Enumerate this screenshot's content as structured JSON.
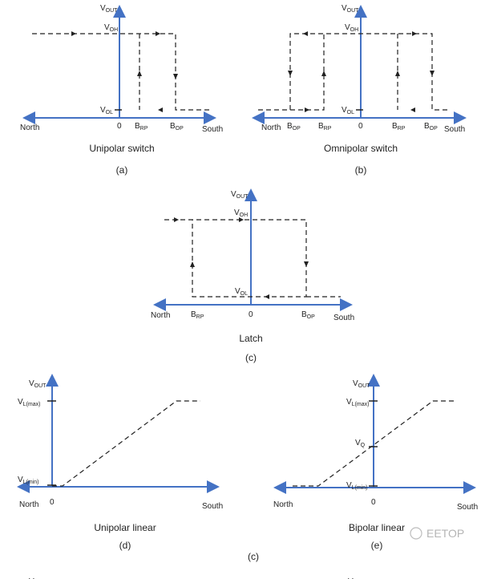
{
  "labels": {
    "vout": "V",
    "vout_sub": "OUT",
    "voh": "V",
    "voh_sub": "OH",
    "vol": "V",
    "vol_sub": "OL",
    "brp": "B",
    "brp_sub": "RP",
    "bop": "B",
    "bop_sub": "OP",
    "north": "North",
    "south": "South",
    "zero": "0",
    "vlmax": "V",
    "vlmax_sub": "L(max)",
    "vlmin": "V",
    "vlmin_sub": "L(min)",
    "vq": "V",
    "vq_sub": "Q"
  },
  "panels": {
    "a": {
      "title": "Unipolar switch",
      "tag": "(a)"
    },
    "b": {
      "title": "Omnipolar switch",
      "tag": "(b)"
    },
    "c": {
      "title": "Latch",
      "tag": "(c)"
    },
    "d": {
      "title": "Unipolar linear",
      "tag": "(d)"
    },
    "e": {
      "title": "Bipolar linear",
      "tag": "(e)"
    }
  },
  "stray_tag": "(c)",
  "watermark": "EETOP",
  "colors": {
    "axis": "#4472c4",
    "curve": "#222222"
  }
}
